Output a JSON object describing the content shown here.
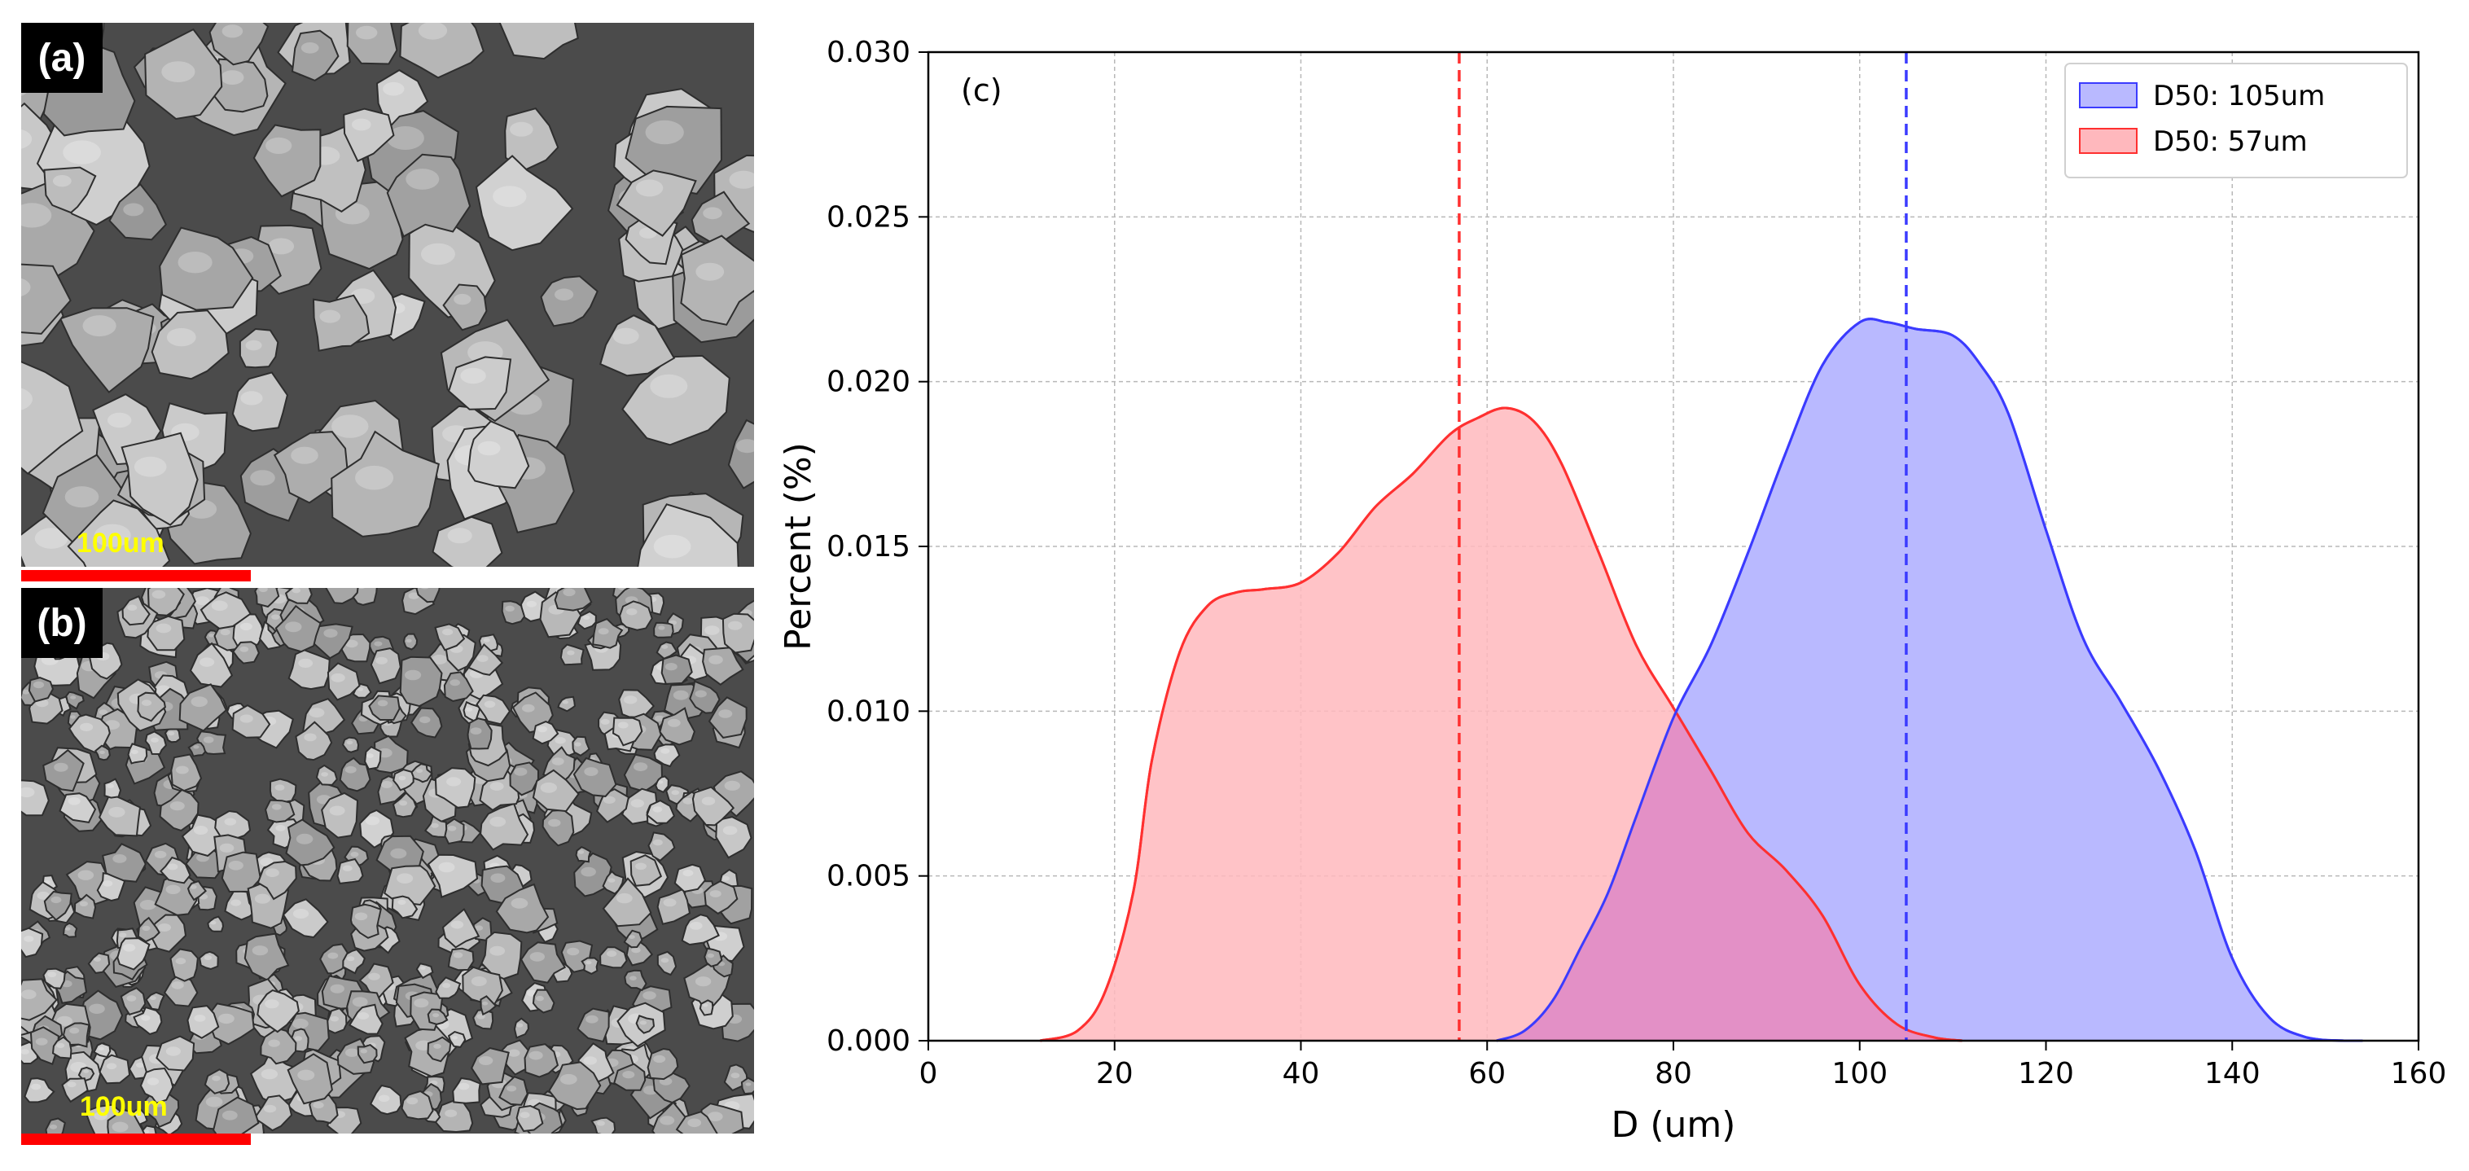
{
  "panels": {
    "a": {
      "label": "(a)",
      "scale_text": "100um"
    },
    "b": {
      "label": "(b)",
      "scale_text": "100um"
    }
  },
  "colors": {
    "blue": "#3b3bff",
    "blue_fill": "#b9b9ff",
    "red": "#ff3030",
    "red_fill": "#ffb8bd",
    "overlap": "#e390c6",
    "scale_bar": "#ff0000",
    "scale_text": "#ffff00"
  },
  "chart_data": {
    "type": "area",
    "panel_label": "(c)",
    "xlabel": "D (um)",
    "ylabel": "Percent (%)",
    "xlim": [
      0,
      160
    ],
    "ylim": [
      0,
      0.03
    ],
    "xticks": [
      0,
      20,
      40,
      60,
      80,
      100,
      120,
      140,
      160
    ],
    "yticks": [
      0.0,
      0.005,
      0.01,
      0.015,
      0.02,
      0.025,
      0.03
    ],
    "ytick_labels": [
      "0.000",
      "0.005",
      "0.010",
      "0.015",
      "0.020",
      "0.025",
      "0.030"
    ],
    "grid": true,
    "legend_position": "top-right",
    "series": [
      {
        "name": "D50: 105um",
        "color": "blue",
        "d50": 105,
        "x": [
          61,
          64,
          67,
          70,
          73,
          76,
          80,
          84,
          88,
          92,
          96,
          100,
          103,
          106,
          110,
          113,
          116,
          120,
          124,
          128,
          132,
          136,
          140,
          144,
          148,
          152,
          154
        ],
        "y": [
          0.0,
          0.0003,
          0.0012,
          0.0028,
          0.0045,
          0.0068,
          0.0098,
          0.012,
          0.0148,
          0.0178,
          0.0205,
          0.0218,
          0.0218,
          0.0216,
          0.0214,
          0.0205,
          0.019,
          0.0155,
          0.0122,
          0.0103,
          0.0083,
          0.0058,
          0.0025,
          0.0007,
          0.0001,
          0.0,
          0.0
        ]
      },
      {
        "name": "D50: 57um",
        "color": "red",
        "d50": 57,
        "x": [
          12,
          16,
          19,
          22,
          24,
          27,
          30,
          33,
          36,
          40,
          44,
          48,
          52,
          56,
          59,
          62,
          65,
          68,
          72,
          76,
          80,
          84,
          88,
          92,
          96,
          100,
          104,
          108,
          111
        ],
        "y": [
          0.0,
          0.0003,
          0.0015,
          0.0045,
          0.0085,
          0.0118,
          0.0132,
          0.0136,
          0.0137,
          0.0139,
          0.0148,
          0.0162,
          0.0172,
          0.0184,
          0.0189,
          0.0192,
          0.0188,
          0.0175,
          0.0148,
          0.012,
          0.0101,
          0.0082,
          0.0063,
          0.0052,
          0.0038,
          0.0017,
          0.0005,
          0.0001,
          0.0
        ]
      }
    ]
  }
}
